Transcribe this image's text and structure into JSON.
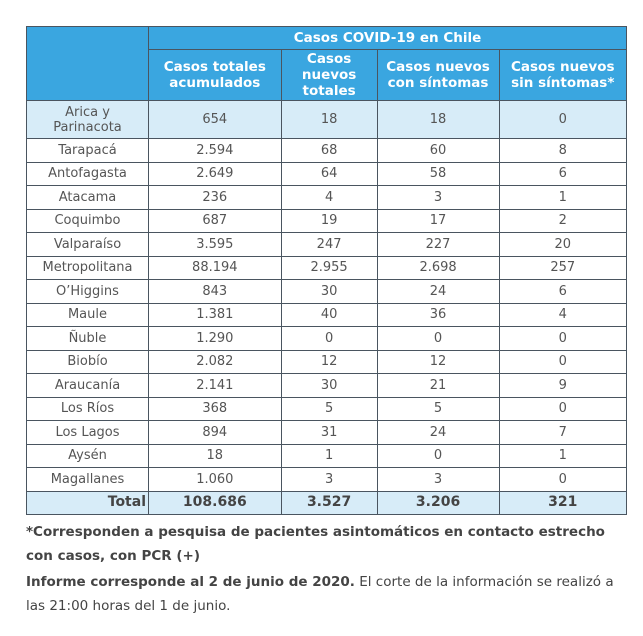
{
  "table": {
    "title": "Casos COVID-19 en Chile",
    "columns": [
      "Casos totales acumulados",
      "Casos nuevos totales",
      "Casos nuevos con síntomas",
      "Casos nuevos sin síntomas*"
    ],
    "rows": [
      [
        "Arica y Parinacota",
        "654",
        "18",
        "18",
        "0"
      ],
      [
        "Tarapacá",
        "2.594",
        "68",
        "60",
        "8"
      ],
      [
        "Antofagasta",
        "2.649",
        "64",
        "58",
        "6"
      ],
      [
        "Atacama",
        "236",
        "4",
        "3",
        "1"
      ],
      [
        "Coquimbo",
        "687",
        "19",
        "17",
        "2"
      ],
      [
        "Valparaíso",
        "3.595",
        "247",
        "227",
        "20"
      ],
      [
        "Metropolitana",
        "88.194",
        "2.955",
        "2.698",
        "257"
      ],
      [
        "O’Higgins",
        "843",
        "30",
        "24",
        "6"
      ],
      [
        "Maule",
        "1.381",
        "40",
        "36",
        "4"
      ],
      [
        "Ñuble",
        "1.290",
        "0",
        "0",
        "0"
      ],
      [
        "Biobío",
        "2.082",
        "12",
        "12",
        "0"
      ],
      [
        "Araucanía",
        "2.141",
        "30",
        "21",
        "9"
      ],
      [
        "Los Ríos",
        "368",
        "5",
        "5",
        "0"
      ],
      [
        "Los Lagos",
        "894",
        "31",
        "24",
        "7"
      ],
      [
        "Aysén",
        "18",
        "1",
        "0",
        "1"
      ],
      [
        "Magallanes",
        "1.060",
        "3",
        "3",
        "0"
      ]
    ],
    "total": [
      "Total",
      "108.686",
      "3.527",
      "3.206",
      "321"
    ]
  },
  "notes": {
    "footnote": "*Corresponden a pesquisa de pacientes asintomáticos en contacto estrecho con casos, con PCR (+)",
    "report_bold": "Informe corresponde al 2 de junio de 2020.",
    "report_rest": " El corte de la información se realizó a las 21:00 horas del 1 de junio."
  }
}
